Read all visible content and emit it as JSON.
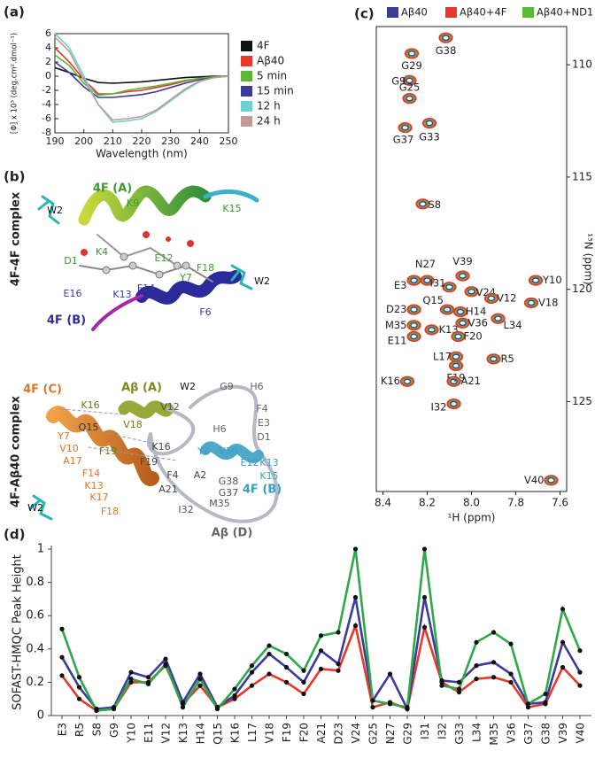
{
  "chart_data": [
    {
      "type": "line",
      "panel_label": "(a)",
      "x_label": "Wavelength (nm)",
      "y_label": "[Φ] x 10³ (deg.cm².dmol⁻¹)",
      "x": [
        190,
        195,
        200,
        205,
        210,
        215,
        220,
        225,
        230,
        235,
        240,
        245,
        250
      ],
      "xlim": [
        190,
        250
      ],
      "xticks": [
        190,
        200,
        210,
        220,
        230,
        240,
        250
      ],
      "ylim": [
        -8,
        6
      ],
      "yticks": [
        -8,
        -6,
        -4,
        -2,
        0,
        2,
        4,
        6
      ],
      "legend": "right",
      "series": [
        {
          "name": "4F",
          "color": "#111111",
          "values": [
            1.2,
            0.5,
            -0.3,
            -0.9,
            -1.0,
            -0.9,
            -0.8,
            -0.6,
            -0.4,
            -0.2,
            -0.1,
            0,
            0
          ]
        },
        {
          "name": "Aβ40",
          "color": "#e8382b",
          "values": [
            4,
            2,
            -0.5,
            -2.5,
            -2.5,
            -2.2,
            -2,
            -1.6,
            -1.2,
            -0.7,
            -0.3,
            -0.1,
            0
          ]
        },
        {
          "name": "5 min",
          "color": "#5bb833",
          "values": [
            3,
            1.5,
            -1,
            -2.7,
            -2.5,
            -2,
            -1.7,
            -1.4,
            -1,
            -0.6,
            -0.3,
            -0.1,
            0
          ]
        },
        {
          "name": "15 min",
          "color": "#3b3b9c",
          "values": [
            2,
            0.5,
            -1.5,
            -3,
            -3,
            -2.8,
            -2.6,
            -2.2,
            -1.6,
            -1,
            -0.5,
            -0.2,
            0
          ]
        },
        {
          "name": "12 h",
          "color": "#6fcfd6",
          "values": [
            6,
            4,
            0,
            -4,
            -6.5,
            -6.3,
            -6,
            -5,
            -3.5,
            -2,
            -0.8,
            -0.2,
            0
          ]
        },
        {
          "name": "24 h",
          "color": "#c49a94",
          "values": [
            5.5,
            3.5,
            -0.5,
            -4,
            -6.2,
            -6,
            -5.7,
            -4.8,
            -3.3,
            -1.8,
            -0.7,
            -0.2,
            0
          ]
        }
      ]
    },
    {
      "type": "scatter",
      "panel_label": "(c)",
      "x_label": "¹H  (ppm)",
      "y_label": "¹⁵N  (ppm)",
      "xlim": [
        8.43,
        7.57
      ],
      "xticks": [
        {
          "value": 8.4,
          "label": "8.4"
        },
        {
          "value": 8.2,
          "label": "8.2"
        },
        {
          "value": 8,
          "label": "8.0"
        },
        {
          "value": 7.8,
          "label": "7.8"
        },
        {
          "value": 7.6,
          "label": "7.6"
        }
      ],
      "ylim": [
        129,
        108.3
      ],
      "yticks": [
        110,
        115,
        120,
        125
      ],
      "legend": "top",
      "series": [
        {
          "name": "Aβ40",
          "color": "#3b3b9c"
        },
        {
          "name": "Aβ40+4F",
          "color": "#e8382b"
        },
        {
          "name": "Aβ40+ND1",
          "color": "#5bb833"
        }
      ],
      "labels": [
        "G38",
        "G29",
        "G9",
        "G25",
        "G37",
        "G33",
        "S8",
        "N27",
        "E3",
        "V39",
        "Y10",
        "I31",
        "V24",
        "V12",
        "V18",
        "Q15",
        "H14",
        "D23",
        "V36",
        "L34",
        "M35",
        "K13",
        "F20",
        "E11",
        "L17",
        "R5",
        "F19",
        "K16",
        "A21",
        "I32",
        "V40"
      ],
      "x": [
        8.116,
        8.27,
        8.28,
        8.28,
        8.3,
        8.19,
        8.22,
        8.2,
        8.26,
        8.04,
        7.71,
        8.1,
        8.0,
        7.91,
        7.73,
        8.11,
        8.05,
        8.26,
        8.04,
        7.88,
        8.26,
        8.18,
        8.06,
        8.26,
        8.07,
        7.9,
        8.07,
        8.29,
        8.08,
        8.08,
        7.64
      ],
      "y": [
        108.8,
        109.5,
        110.7,
        111.5,
        112.8,
        112.6,
        116.2,
        119.6,
        119.6,
        119.4,
        119.6,
        119.9,
        120.1,
        120.4,
        120.6,
        120.9,
        121.0,
        120.9,
        121.5,
        121.3,
        121.6,
        121.8,
        122.1,
        122.1,
        123.0,
        123.1,
        123.4,
        124.1,
        124.1,
        125.1,
        128.5
      ]
    },
    {
      "type": "line",
      "panel_label": "(d)",
      "y_label": "SOFAST-HMQC Peak Height",
      "categories": [
        "E3",
        "R5",
        "S8",
        "G9",
        "Y10",
        "E11",
        "V12",
        "K13",
        "H14",
        "Q15",
        "K16",
        "L17",
        "V18",
        "F19",
        "F20",
        "A21",
        "D23",
        "V24",
        "G25",
        "N27",
        "G29",
        "I31",
        "I32",
        "G33",
        "L34",
        "M35",
        "V36",
        "G37",
        "G38",
        "V39",
        "V40"
      ],
      "ylim": [
        0,
        1
      ],
      "yticks": [
        0,
        0.2,
        0.4,
        0.6,
        0.8,
        1
      ],
      "series": [
        {
          "color": "#e8382b",
          "values": [
            0.24,
            0.1,
            0.03,
            0.04,
            0.2,
            0.2,
            0.3,
            0.07,
            0.18,
            0.05,
            0.1,
            0.18,
            0.25,
            0.2,
            0.13,
            0.28,
            0.27,
            0.54,
            0.05,
            0.08,
            0.04,
            0.53,
            0.2,
            0.14,
            0.22,
            0.23,
            0.2,
            0.05,
            0.07,
            0.29,
            0.18
          ]
        },
        {
          "color": "#3b3b9c",
          "values": [
            0.35,
            0.17,
            0.04,
            0.05,
            0.26,
            0.23,
            0.34,
            0.08,
            0.25,
            0.05,
            0.12,
            0.26,
            0.37,
            0.29,
            0.2,
            0.39,
            0.31,
            0.71,
            0.09,
            0.25,
            0.04,
            0.71,
            0.21,
            0.2,
            0.3,
            0.32,
            0.25,
            0.07,
            0.08,
            0.44,
            0.26
          ]
        },
        {
          "color": "#2ea84a",
          "values": [
            0.52,
            0.23,
            0.03,
            0.04,
            0.22,
            0.19,
            0.31,
            0.05,
            0.22,
            0.04,
            0.16,
            0.3,
            0.42,
            0.37,
            0.27,
            0.48,
            0.5,
            1.0,
            0.09,
            0.07,
            0.05,
            1.0,
            0.18,
            0.16,
            0.44,
            0.5,
            0.43,
            0.07,
            0.13,
            0.64,
            0.39
          ]
        }
      ]
    }
  ],
  "panel_b": {
    "panel_label": "(b)",
    "complexes": [
      {
        "title": "4F-4F complex",
        "chains": [
          {
            "text": "4F (A)",
            "color": "#3c9a2e"
          },
          {
            "text": "4F (B)",
            "color": "#2b2b9a"
          }
        ],
        "residues": [
          {
            "text": "W2",
            "color": "#111111"
          },
          {
            "text": "K9",
            "color": "#3c9a2e"
          },
          {
            "text": "K15",
            "color": "#3c9a2e"
          },
          {
            "text": "K4",
            "color": "#3c9a2e"
          },
          {
            "text": "D1",
            "color": "#3c9a2e"
          },
          {
            "text": "E12",
            "color": "#3c9a2e"
          },
          {
            "text": "F18",
            "color": "#3c9a2e"
          },
          {
            "text": "Y7",
            "color": "#3c9a2e"
          },
          {
            "text": "F14",
            "color": "#3a3aa0"
          },
          {
            "text": "E16",
            "color": "#3a3aa0"
          },
          {
            "text": "K13",
            "color": "#3a3aa0"
          },
          {
            "text": "W2",
            "color": "#111111"
          },
          {
            "text": "F6",
            "color": "#3a3aa0"
          }
        ]
      },
      {
        "title": "4F-Aβ40 complex",
        "chains": [
          {
            "text": "4F (C)",
            "color": "#d9772b"
          },
          {
            "text": "Aβ (A)",
            "color": "#7d8a1e"
          },
          {
            "text": "4F (B)",
            "color": "#3a9fc0"
          },
          {
            "text": "Aβ (D)",
            "color": "#666666"
          }
        ],
        "residues": [
          {
            "text": "W2",
            "color": "#111111"
          },
          {
            "text": "W2",
            "color": "#111111"
          },
          {
            "text": "K16",
            "color": "#6b7a1a"
          },
          {
            "text": "Q15",
            "color": "#333333"
          },
          {
            "text": "V18",
            "color": "#6b7a1a"
          },
          {
            "text": "V12",
            "color": "#555555"
          },
          {
            "text": "G9",
            "color": "#666666"
          },
          {
            "text": "H6",
            "color": "#666666"
          },
          {
            "text": "F4",
            "color": "#666666"
          },
          {
            "text": "E3",
            "color": "#666666"
          },
          {
            "text": "D1",
            "color": "#666666"
          },
          {
            "text": "H6",
            "color": "#666666"
          },
          {
            "text": "Y7",
            "color": "#d9772b"
          },
          {
            "text": "V10",
            "color": "#d9772b"
          },
          {
            "text": "A17",
            "color": "#d9772b"
          },
          {
            "text": "F14",
            "color": "#d9772b"
          },
          {
            "text": "K13",
            "color": "#d9772b"
          },
          {
            "text": "K17",
            "color": "#d9772b"
          },
          {
            "text": "F18",
            "color": "#d9772b"
          },
          {
            "text": "F19",
            "color": "#6b7a1a"
          },
          {
            "text": "K16",
            "color": "#444444"
          },
          {
            "text": "F19",
            "color": "#444444"
          },
          {
            "text": "A21",
            "color": "#444444"
          },
          {
            "text": "F4",
            "color": "#444444"
          },
          {
            "text": "A2",
            "color": "#444444"
          },
          {
            "text": "Y7",
            "color": "#3a9fc0"
          },
          {
            "text": "V10",
            "color": "#3a9fc0"
          },
          {
            "text": "E12",
            "color": "#3a9fc0"
          },
          {
            "text": "K13",
            "color": "#3a9fc0"
          },
          {
            "text": "K15",
            "color": "#3a9fc0"
          },
          {
            "text": "G38",
            "color": "#555555"
          },
          {
            "text": "G37",
            "color": "#555555"
          },
          {
            "text": "M35",
            "color": "#555555"
          },
          {
            "text": "I32",
            "color": "#555555"
          }
        ]
      }
    ]
  }
}
